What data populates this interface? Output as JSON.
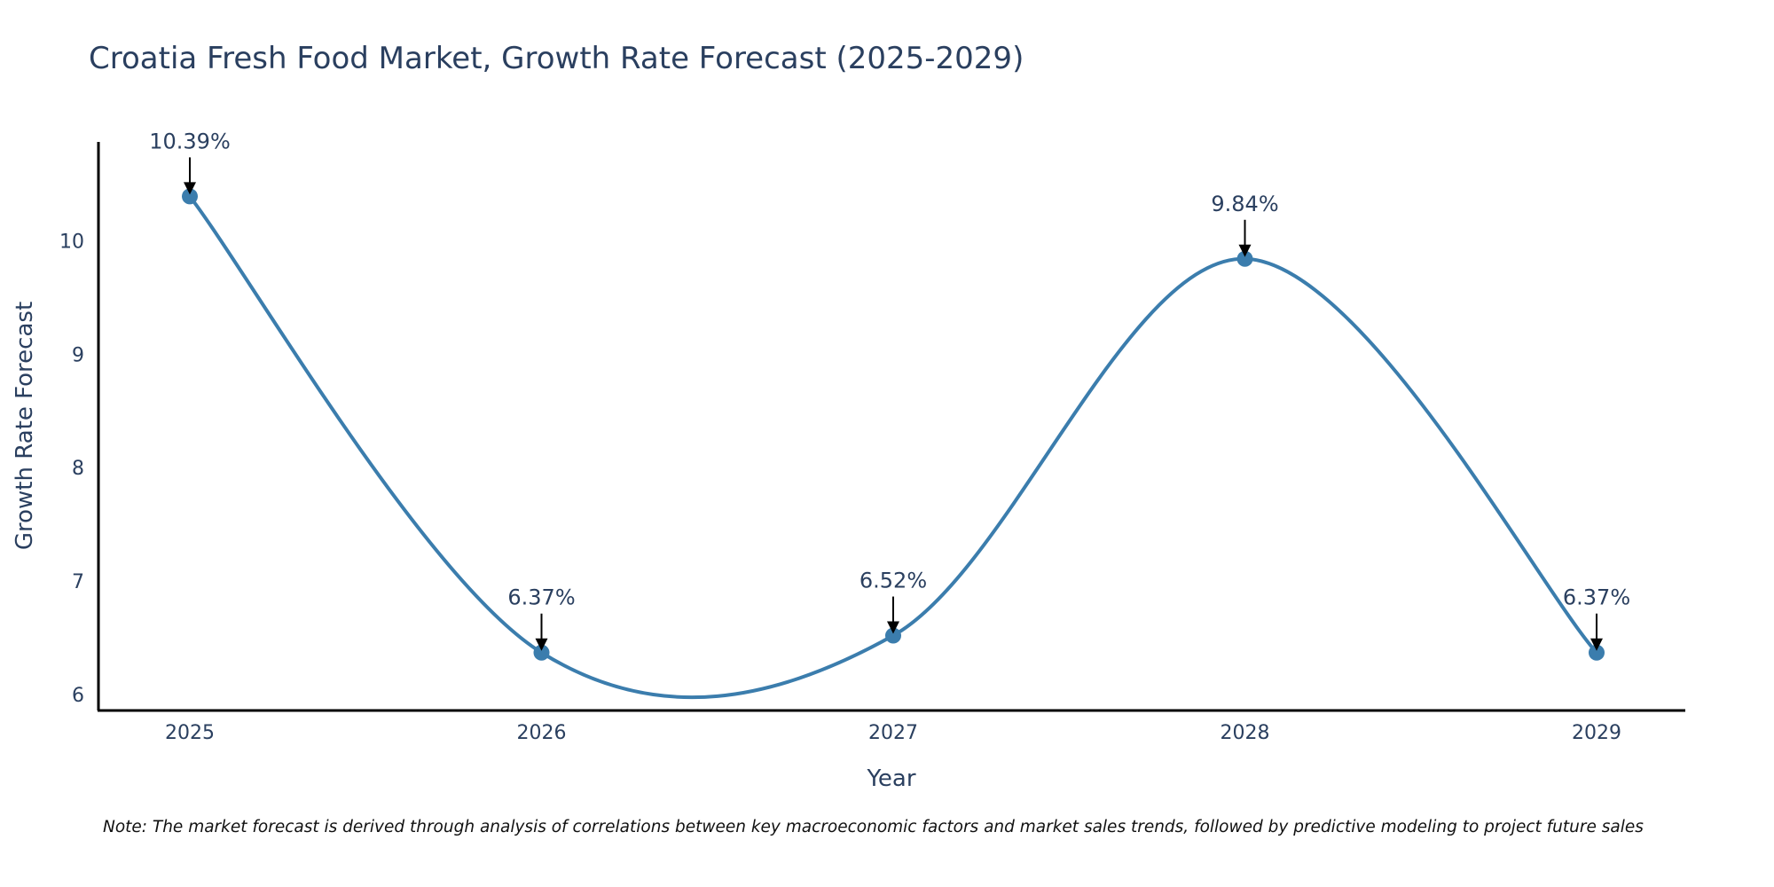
{
  "chart_data": {
    "type": "line",
    "title": "Croatia Fresh Food Market, Growth Rate Forecast (2025-2029)",
    "xlabel": "Year",
    "ylabel": "Growth Rate Forecast",
    "categories": [
      "2025",
      "2026",
      "2027",
      "2028",
      "2029"
    ],
    "values": [
      10.39,
      6.37,
      6.52,
      9.84,
      6.37
    ],
    "data_labels": [
      "10.39%",
      "6.37%",
      "6.52%",
      "9.84%",
      "6.37%"
    ],
    "yticks": [
      6,
      7,
      8,
      9,
      10
    ],
    "ylim": [
      5.86,
      10.87
    ],
    "line_shape": "spline",
    "grid": false,
    "colors": {
      "line": "#3b7dad",
      "marker": "#3b7dad",
      "arrow": "#000000",
      "axis": "#000000"
    }
  },
  "note": "Note: The market forecast is derived through analysis of correlations between key macroeconomic factors and market sales trends, followed by predictive modeling to project future sales"
}
